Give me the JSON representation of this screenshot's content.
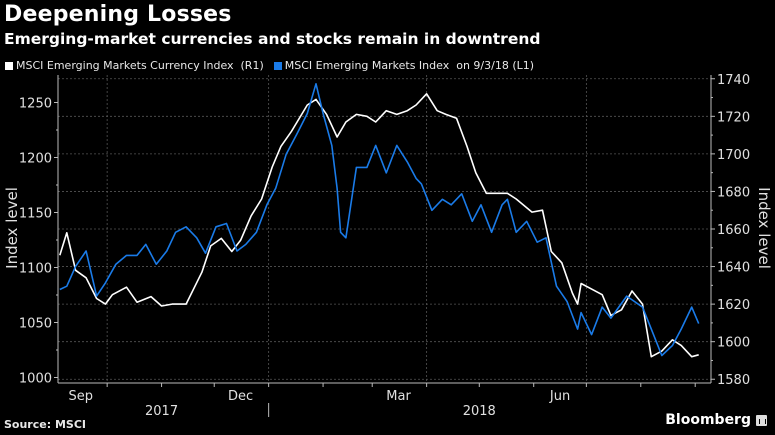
{
  "header": {
    "title": "Deepening Losses",
    "subtitle": "Emerging-market currencies and stocks remain in downtrend"
  },
  "footer": {
    "source": "Source: MSCI",
    "brand": "Bloomberg"
  },
  "colors": {
    "background": "#000000",
    "currency_series": "#ffffff",
    "index_series": "#1a7be8",
    "grid": "#555555",
    "axis": "#bbbbbb"
  },
  "chart_data": {
    "type": "line",
    "title": "Deepening Losses",
    "subtitle": "Emerging-market currencies and stocks remain in downtrend",
    "xlabel": "",
    "ylabel_left": "Index level",
    "ylabel_right": "Index level",
    "x_range": [
      "2017-09-03",
      "2018-09-10"
    ],
    "ylim_left": [
      995,
      1275
    ],
    "ylim_right": [
      1578,
      1742
    ],
    "yticks_left": [
      1000,
      1050,
      1100,
      1150,
      1200,
      1250
    ],
    "yticks_right": [
      1580,
      1600,
      1620,
      1640,
      1660,
      1680,
      1700,
      1720,
      1740
    ],
    "xtick_labels": [
      {
        "label": "Sep",
        "date": "2017-09-16"
      },
      {
        "label": "Dec",
        "date": "2017-12-16"
      },
      {
        "label": "Mar",
        "date": "2018-03-16"
      },
      {
        "label": "Jun",
        "date": "2018-06-16"
      }
    ],
    "year_labels": [
      {
        "label": "2017",
        "date": "2017-11-01"
      },
      {
        "label": "2018",
        "date": "2018-05-01"
      }
    ],
    "grid": true,
    "legend": "top-left",
    "series": [
      {
        "name": "MSCI Emerging Markets Currency Index  (R1)",
        "axis": "right",
        "color": "#ffffff",
        "points": [
          [
            "2017-09-04",
            1646
          ],
          [
            "2017-09-08",
            1658
          ],
          [
            "2017-09-13",
            1638
          ],
          [
            "2017-09-19",
            1634
          ],
          [
            "2017-09-25",
            1623
          ],
          [
            "2017-09-30",
            1620
          ],
          [
            "2017-10-04",
            1625
          ],
          [
            "2017-10-12",
            1629
          ],
          [
            "2017-10-18",
            1621
          ],
          [
            "2017-10-26",
            1624
          ],
          [
            "2017-11-01",
            1619
          ],
          [
            "2017-11-07",
            1620
          ],
          [
            "2017-11-15",
            1620
          ],
          [
            "2017-11-24",
            1637
          ],
          [
            "2017-11-29",
            1651
          ],
          [
            "2017-12-05",
            1655
          ],
          [
            "2017-12-11",
            1648
          ],
          [
            "2017-12-16",
            1654
          ],
          [
            "2017-12-22",
            1667
          ],
          [
            "2017-12-28",
            1676
          ],
          [
            "2018-01-03",
            1693
          ],
          [
            "2018-01-08",
            1704
          ],
          [
            "2018-01-14",
            1712
          ],
          [
            "2018-01-23",
            1726
          ],
          [
            "2018-01-28",
            1729
          ],
          [
            "2018-02-03",
            1721
          ],
          [
            "2018-02-09",
            1709
          ],
          [
            "2018-02-14",
            1717
          ],
          [
            "2018-02-20",
            1721
          ],
          [
            "2018-02-26",
            1720
          ],
          [
            "2018-03-03",
            1717
          ],
          [
            "2018-03-09",
            1723
          ],
          [
            "2018-03-15",
            1721
          ],
          [
            "2018-03-21",
            1723
          ],
          [
            "2018-03-26",
            1726
          ],
          [
            "2018-04-01",
            1732
          ],
          [
            "2018-04-07",
            1723
          ],
          [
            "2018-04-12",
            1721
          ],
          [
            "2018-04-18",
            1719
          ],
          [
            "2018-04-24",
            1704
          ],
          [
            "2018-04-29",
            1690
          ],
          [
            "2018-05-05",
            1679
          ],
          [
            "2018-05-11",
            1679
          ],
          [
            "2018-05-17",
            1679
          ],
          [
            "2018-05-22",
            1676
          ],
          [
            "2018-05-31",
            1669
          ],
          [
            "2018-06-06",
            1670
          ],
          [
            "2018-06-11",
            1648
          ],
          [
            "2018-06-17",
            1642
          ],
          [
            "2018-06-23",
            1626
          ],
          [
            "2018-06-26",
            1620
          ],
          [
            "2018-06-28",
            1631
          ],
          [
            "2018-07-04",
            1628
          ],
          [
            "2018-07-10",
            1625
          ],
          [
            "2018-07-15",
            1614
          ],
          [
            "2018-07-21",
            1617
          ],
          [
            "2018-07-27",
            1627
          ],
          [
            "2018-08-02",
            1620
          ],
          [
            "2018-08-07",
            1592
          ],
          [
            "2018-08-13",
            1595
          ],
          [
            "2018-08-19",
            1601
          ],
          [
            "2018-08-24",
            1598
          ],
          [
            "2018-08-30",
            1592
          ],
          [
            "2018-09-03",
            1593
          ]
        ]
      },
      {
        "name": "MSCI Emerging Markets Index  on 9/3/18 (L1)",
        "axis": "left",
        "color": "#1a7be8",
        "points": [
          [
            "2017-09-04",
            1080
          ],
          [
            "2017-09-08",
            1083
          ],
          [
            "2017-09-13",
            1101
          ],
          [
            "2017-09-19",
            1115
          ],
          [
            "2017-09-25",
            1074
          ],
          [
            "2017-09-30",
            1086
          ],
          [
            "2017-10-06",
            1103
          ],
          [
            "2017-10-12",
            1111
          ],
          [
            "2017-10-18",
            1111
          ],
          [
            "2017-10-23",
            1121
          ],
          [
            "2017-10-29",
            1103
          ],
          [
            "2017-11-04",
            1115
          ],
          [
            "2017-11-09",
            1132
          ],
          [
            "2017-11-15",
            1137
          ],
          [
            "2017-11-21",
            1127
          ],
          [
            "2017-11-26",
            1113
          ],
          [
            "2017-12-02",
            1137
          ],
          [
            "2017-12-08",
            1140
          ],
          [
            "2017-12-14",
            1115
          ],
          [
            "2017-12-19",
            1121
          ],
          [
            "2017-12-25",
            1132
          ],
          [
            "2017-12-31",
            1157
          ],
          [
            "2018-01-05",
            1172
          ],
          [
            "2018-01-11",
            1203
          ],
          [
            "2018-01-17",
            1221
          ],
          [
            "2018-01-23",
            1240
          ],
          [
            "2018-01-28",
            1267
          ],
          [
            "2018-02-01",
            1240
          ],
          [
            "2018-02-06",
            1211
          ],
          [
            "2018-02-09",
            1172
          ],
          [
            "2018-02-11",
            1132
          ],
          [
            "2018-02-14",
            1127
          ],
          [
            "2018-02-20",
            1191
          ],
          [
            "2018-02-26",
            1191
          ],
          [
            "2018-03-03",
            1211
          ],
          [
            "2018-03-09",
            1186
          ],
          [
            "2018-03-15",
            1211
          ],
          [
            "2018-03-21",
            1196
          ],
          [
            "2018-03-26",
            1181
          ],
          [
            "2018-03-29",
            1176
          ],
          [
            "2018-04-04",
            1152
          ],
          [
            "2018-04-10",
            1162
          ],
          [
            "2018-04-15",
            1157
          ],
          [
            "2018-04-21",
            1167
          ],
          [
            "2018-04-27",
            1142
          ],
          [
            "2018-05-02",
            1157
          ],
          [
            "2018-05-08",
            1132
          ],
          [
            "2018-05-14",
            1157
          ],
          [
            "2018-05-17",
            1162
          ],
          [
            "2018-05-22",
            1132
          ],
          [
            "2018-05-28",
            1142
          ],
          [
            "2018-06-03",
            1123
          ],
          [
            "2018-06-08",
            1127
          ],
          [
            "2018-06-14",
            1083
          ],
          [
            "2018-06-20",
            1069
          ],
          [
            "2018-06-26",
            1044
          ],
          [
            "2018-06-28",
            1059
          ],
          [
            "2018-07-04",
            1039
          ],
          [
            "2018-07-10",
            1064
          ],
          [
            "2018-07-15",
            1054
          ],
          [
            "2018-07-24",
            1074
          ],
          [
            "2018-08-02",
            1064
          ],
          [
            "2018-08-07",
            1044
          ],
          [
            "2018-08-13",
            1020
          ],
          [
            "2018-08-19",
            1029
          ],
          [
            "2018-08-24",
            1044
          ],
          [
            "2018-08-30",
            1064
          ],
          [
            "2018-09-03",
            1049
          ]
        ]
      }
    ]
  },
  "legend": [
    {
      "label": "MSCI Emerging Markets Currency Index  (R1)",
      "color": "#ffffff"
    },
    {
      "label": "MSCI Emerging Markets Index  on 9/3/18 (L1)",
      "color": "#1a7be8"
    }
  ]
}
